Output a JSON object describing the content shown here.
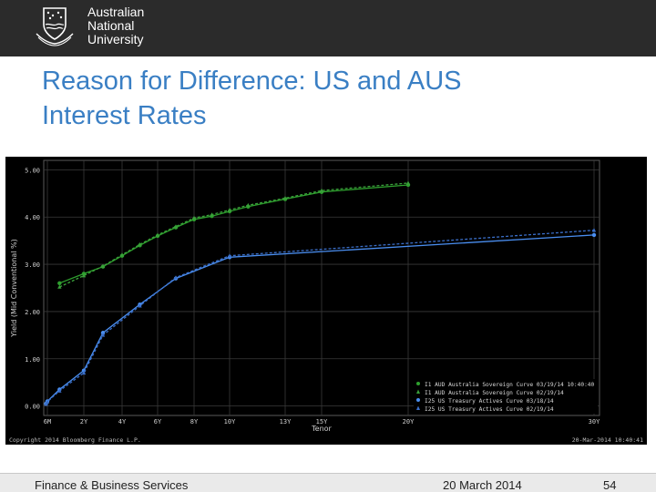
{
  "header": {
    "university_lines": [
      "Australian",
      "National",
      "University"
    ],
    "crest_icon": "university-crest-icon"
  },
  "slide": {
    "title_line1": "Reason for Difference: US and AUS",
    "title_line2": "Interest Rates"
  },
  "footer": {
    "department": "Finance & Business Services",
    "date": "20 March 2014",
    "page": "54"
  },
  "chart_data": {
    "type": "line",
    "title": "",
    "xlabel": "Tenor",
    "ylabel": "Yield (Mid Conventional %)",
    "ylim": [
      -0.2,
      5.2
    ],
    "yticks": [
      0.0,
      1.0,
      2.0,
      3.0,
      4.0,
      5.0
    ],
    "ytick_labels": [
      "0.00",
      "1.00",
      "2.00",
      "3.00",
      "4.00",
      "5.00"
    ],
    "x_ticks": [
      {
        "label": "6M",
        "x": 0.5
      },
      {
        "label": "2Y",
        "x": 2
      },
      {
        "label": "4Y",
        "x": 4
      },
      {
        "label": "6Y",
        "x": 6
      },
      {
        "label": "8Y",
        "x": 8
      },
      {
        "label": "10Y",
        "x": 10
      },
      {
        "label": "13Y",
        "x": 13
      },
      {
        "label": "15Y",
        "x": 15
      },
      {
        "label": "20Y",
        "x": 20
      },
      {
        "label": "30Y",
        "x": 30
      }
    ],
    "grid": true,
    "legend_position": "bottom-right",
    "copyright": "Copyright 2014 Bloomberg Finance L.P.",
    "timestamp": "20-Mar-2014 10:40:41",
    "series": [
      {
        "name": "I1 AUD Australia Sovereign Curve 03/19/14 10:40:40",
        "color": "#2ea02e",
        "marker": "circle",
        "dashed": false,
        "x": [
          1,
          2,
          3,
          4,
          5,
          6,
          7,
          8,
          9,
          10,
          11,
          13,
          15,
          20
        ],
        "y": [
          2.6,
          2.8,
          2.95,
          3.18,
          3.4,
          3.6,
          3.78,
          3.95,
          4.02,
          4.12,
          4.22,
          4.38,
          4.53,
          4.68
        ]
      },
      {
        "name": "I1 AUD Australia Sovereign Curve 02/19/14",
        "color": "#3aa03a",
        "marker": "triangle",
        "dashed": true,
        "x": [
          1,
          2,
          3,
          4,
          5,
          6,
          7,
          8,
          9,
          10,
          11,
          13,
          15,
          20
        ],
        "y": [
          2.52,
          2.76,
          2.96,
          3.2,
          3.42,
          3.62,
          3.8,
          3.98,
          4.05,
          4.15,
          4.25,
          4.4,
          4.56,
          4.72
        ]
      },
      {
        "name": "I25 US Treasury Actives Curve 03/18/14",
        "color": "#4a8ef0",
        "marker": "circle",
        "dashed": false,
        "x": [
          0.25,
          0.5,
          1,
          2,
          3,
          5,
          7,
          10,
          30
        ],
        "y": [
          0.05,
          0.1,
          0.35,
          0.75,
          1.55,
          2.15,
          2.7,
          3.15,
          3.62
        ]
      },
      {
        "name": "I25 US Treasury Actives Curve 02/19/14",
        "color": "#3a6ec8",
        "marker": "triangle",
        "dashed": true,
        "x": [
          0.25,
          0.5,
          1,
          2,
          3,
          5,
          7,
          10,
          30
        ],
        "y": [
          0.04,
          0.09,
          0.32,
          0.7,
          1.5,
          2.12,
          2.72,
          3.18,
          3.72
        ]
      }
    ]
  }
}
